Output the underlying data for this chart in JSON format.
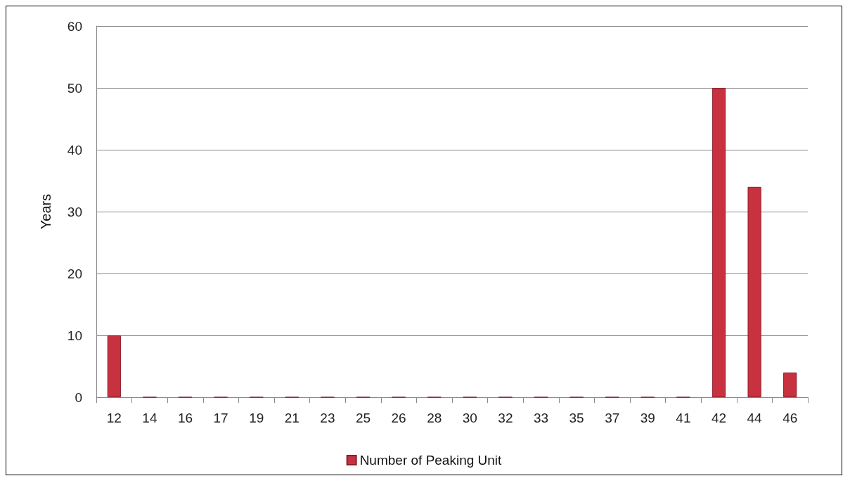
{
  "chart_data": {
    "type": "bar",
    "ylabel": "Years",
    "categories": [
      "12",
      "14",
      "16",
      "17",
      "19",
      "21",
      "23",
      "25",
      "26",
      "28",
      "30",
      "32",
      "33",
      "35",
      "37",
      "39",
      "41",
      "42",
      "44",
      "46"
    ],
    "series": [
      {
        "name": "Number of Peaking Unit",
        "color": "#c8313f",
        "values": [
          10,
          0,
          0,
          0,
          0,
          0,
          0,
          0,
          0,
          0,
          0,
          0,
          0,
          0,
          0,
          0,
          0,
          50,
          34,
          4
        ]
      }
    ],
    "ylim": [
      0,
      60
    ],
    "yticks": [
      0,
      10,
      20,
      30,
      40,
      50,
      60
    ],
    "grid": "y",
    "legend": "bottom"
  }
}
